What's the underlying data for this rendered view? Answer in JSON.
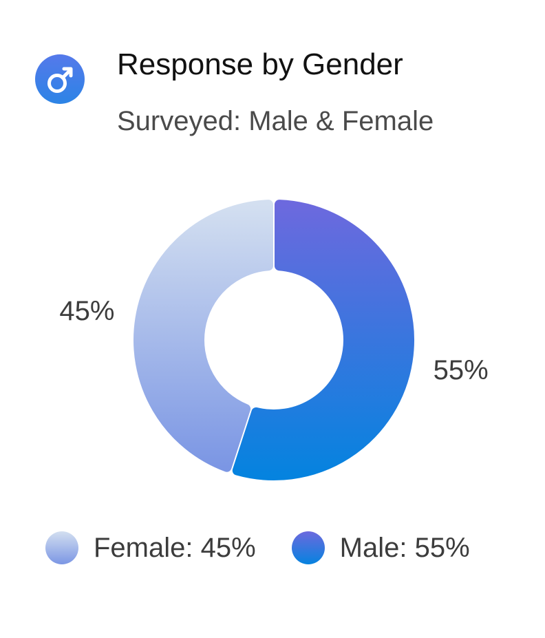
{
  "header": {
    "title": "Response by Gender",
    "subtitle": "Surveyed: Male & Female",
    "icon": "male-symbol-icon"
  },
  "colors": {
    "female_start": "#d3dff0",
    "female_end": "#7b96e4",
    "male_start": "#6c69de",
    "male_end": "#0583df",
    "label_text": "#3c3c3c"
  },
  "chart_data": {
    "type": "pie",
    "variant": "donut",
    "title": "Response by Gender",
    "subtitle": "Surveyed: Male & Female",
    "categories": [
      "Female",
      "Male"
    ],
    "values": [
      45,
      55
    ],
    "data_labels": [
      "45%",
      "55%"
    ],
    "legend_position": "bottom"
  },
  "legend": {
    "items": [
      {
        "label": "Female: 45%"
      },
      {
        "label": "Male: 55%"
      }
    ]
  }
}
